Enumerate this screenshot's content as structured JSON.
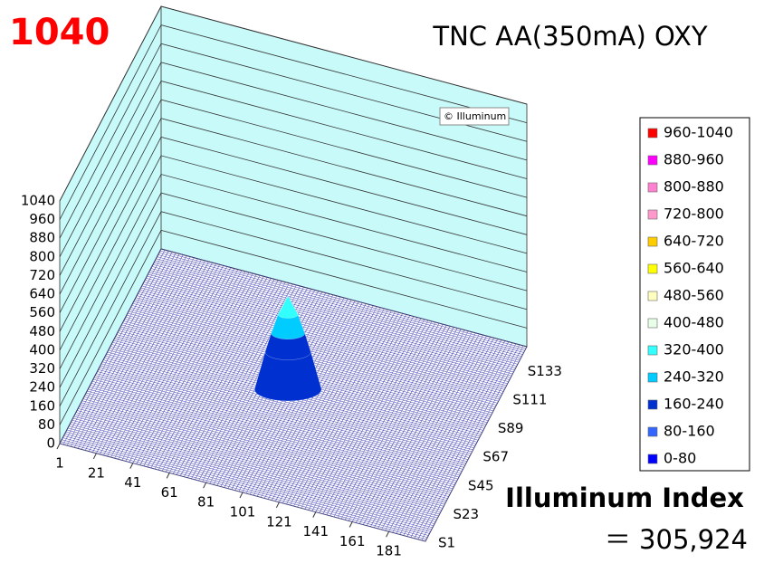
{
  "chart_data": {
    "type": "surface3d",
    "badge": "1040",
    "title": "TNC AA(350mA) OXY",
    "watermark": "© Illuminum",
    "zlim": [
      0,
      1040
    ],
    "zticks": [
      0,
      80,
      160,
      240,
      320,
      400,
      480,
      560,
      640,
      720,
      800,
      880,
      960,
      1040
    ],
    "xlim": [
      1,
      201
    ],
    "xticks": [
      1,
      21,
      41,
      61,
      81,
      101,
      121,
      141,
      161,
      181
    ],
    "y_categories": [
      "S1",
      "S23",
      "S45",
      "S67",
      "S89",
      "S111",
      "S133"
    ],
    "peak": 400,
    "legend": [
      {
        "name": "960-1040",
        "color": "#ff0000"
      },
      {
        "name": "880-960",
        "color": "#ff00ff"
      },
      {
        "name": "800-880",
        "color": "#ff80d0"
      },
      {
        "name": "720-800",
        "color": "#ff99cc"
      },
      {
        "name": "640-720",
        "color": "#ffcc00"
      },
      {
        "name": "560-640",
        "color": "#ffff00"
      },
      {
        "name": "480-560",
        "color": "#ffffc0"
      },
      {
        "name": "400-480",
        "color": "#e8ffe8"
      },
      {
        "name": "320-400",
        "color": "#33ffff"
      },
      {
        "name": "240-320",
        "color": "#00ccff"
      },
      {
        "name": "160-240",
        "color": "#0030d0"
      },
      {
        "name": "80-160",
        "color": "#3366ff"
      },
      {
        "name": "0-80",
        "color": "#0000ff"
      }
    ],
    "index_label": "Illuminum Index",
    "index_value": "＝ 305,924"
  }
}
